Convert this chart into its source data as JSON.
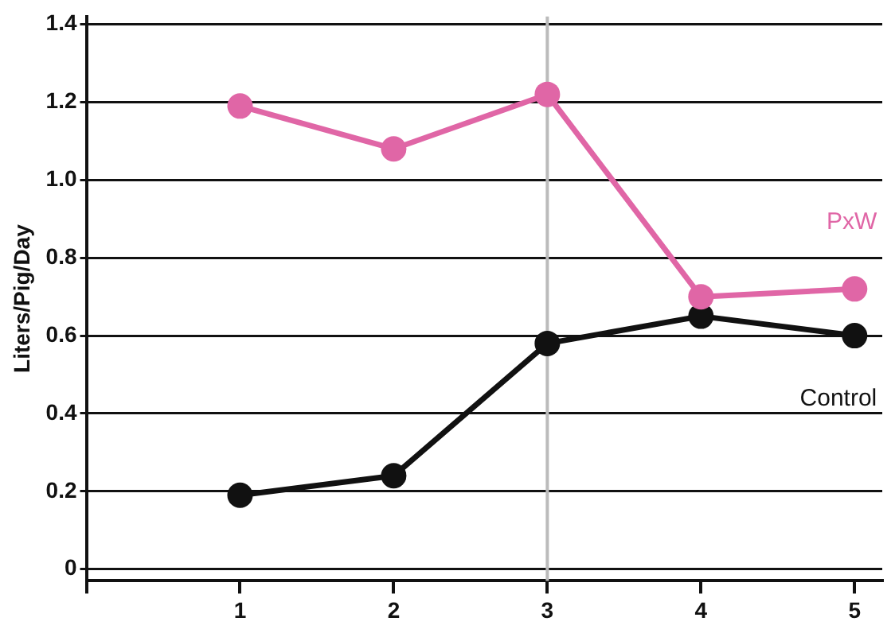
{
  "chart_data": {
    "type": "line",
    "ylabel": "Liters/Pig/Day",
    "x": [
      1,
      2,
      3,
      4,
      5
    ],
    "xlim": [
      0,
      5.18
    ],
    "xticks": [
      {
        "value": 0,
        "label": null
      },
      1,
      2,
      3,
      4,
      5
    ],
    "ylim": [
      -0.03,
      1.42
    ],
    "yticks": [
      0,
      0.2,
      0.4,
      0.6,
      0.8,
      {
        "value": 1,
        "label": "1.0"
      },
      1.2,
      1.4
    ],
    "series": [
      {
        "name": "PxW",
        "color": "#e066a6",
        "values": [
          1.19,
          1.08,
          1.22,
          0.7,
          0.72
        ]
      },
      {
        "name": "Control",
        "color": "#111111",
        "values": [
          0.19,
          0.24,
          0.58,
          0.65,
          0.6
        ]
      }
    ],
    "ref_lines": [
      {
        "axis": "x",
        "value": 3,
        "color": "#bbbbbb"
      }
    ],
    "grid": "y",
    "legend": false,
    "marker": "circle",
    "line_style": "solid"
  }
}
